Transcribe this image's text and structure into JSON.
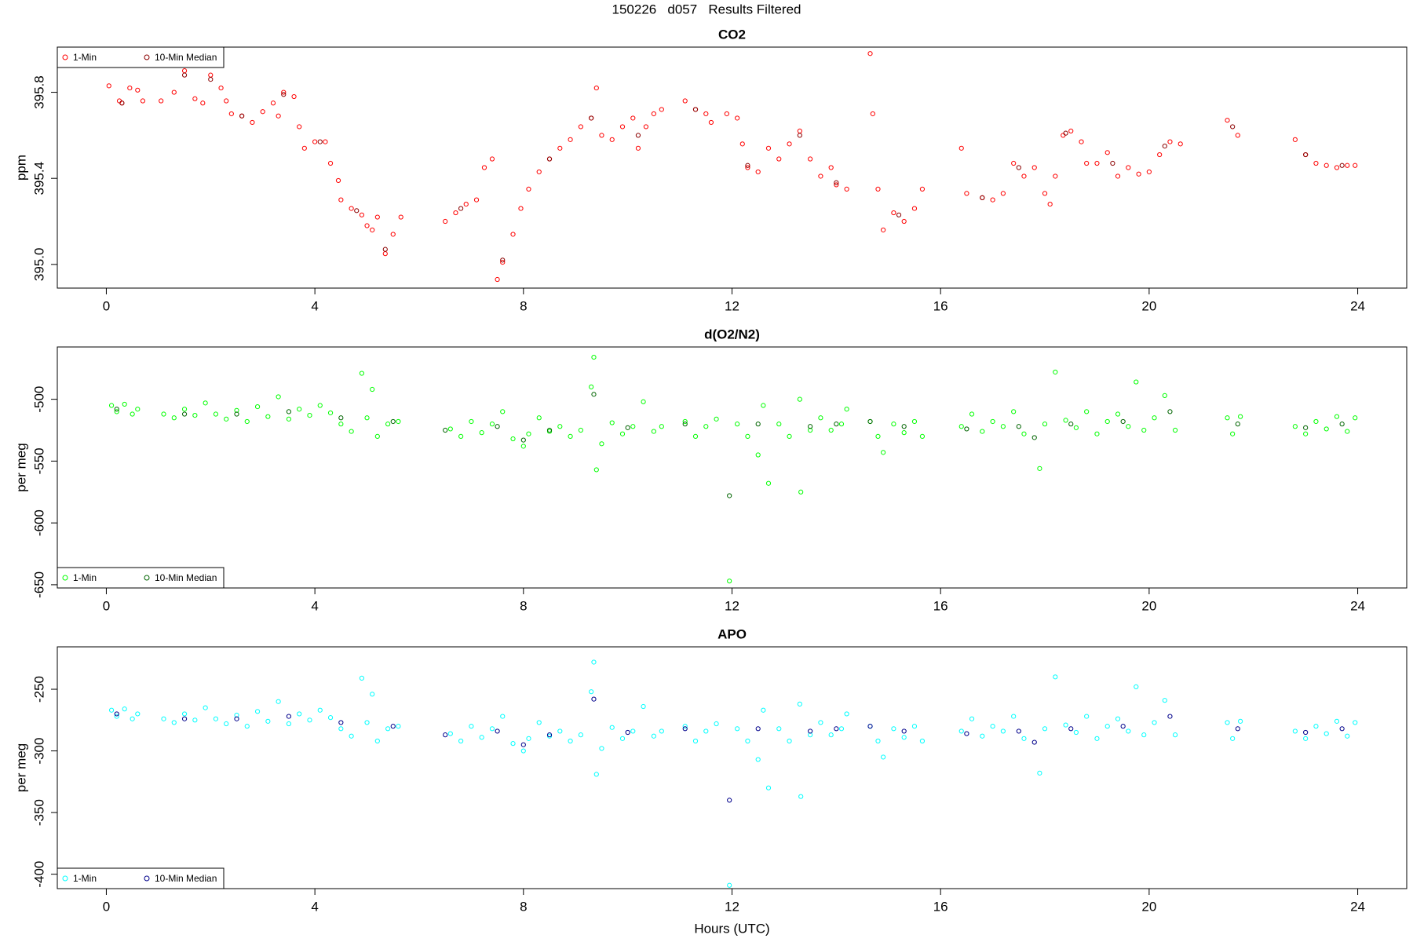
{
  "title": "150226   d057   Results Filtered",
  "chart_data": [
    {
      "type": "scatter",
      "title": "CO2",
      "ylabel": "ppm",
      "legend": "upper left",
      "xlim": [
        -0.94,
        24.94
      ],
      "xticks": [
        0,
        4,
        8,
        12,
        16,
        20,
        24
      ],
      "ylim": [
        394.89,
        396.01
      ],
      "yticks": [
        {
          "value": 395,
          "label": "395.0"
        },
        395.4,
        395.8
      ],
      "series": [
        {
          "name": "1-Min",
          "color": "#ff0000",
          "x": [
            0.05,
            0.25,
            0.3,
            0.45,
            0.6,
            0.7,
            1.05,
            1.3,
            1.5,
            1.7,
            1.85,
            2.0,
            2.2,
            2.3,
            2.4,
            2.6,
            2.8,
            3.0,
            3.2,
            3.3,
            3.4,
            3.6,
            3.7,
            3.8,
            4.0,
            4.2,
            4.3,
            4.45,
            4.5,
            4.7,
            4.9,
            5.0,
            5.1,
            5.2,
            5.35,
            5.5,
            5.65,
            6.5,
            6.7,
            6.9,
            7.1,
            7.25,
            7.4,
            7.5,
            7.6,
            7.8,
            7.95,
            8.1,
            8.3,
            8.5,
            8.7,
            8.9,
            9.1,
            9.3,
            9.4,
            9.5,
            9.7,
            9.9,
            10.1,
            10.2,
            10.35,
            10.5,
            10.65,
            11.1,
            11.3,
            11.5,
            11.6,
            11.9,
            12.1,
            12.2,
            12.3,
            12.5,
            12.7,
            12.9,
            13.1,
            13.3,
            13.5,
            13.7,
            13.9,
            14.0,
            14.2,
            14.65,
            14.7,
            14.8,
            14.9,
            15.1,
            15.3,
            15.5,
            15.65,
            16.4,
            16.5,
            16.8,
            17.0,
            17.2,
            17.4,
            17.6,
            17.8,
            18.0,
            18.1,
            18.2,
            18.35,
            18.5,
            18.7,
            18.8,
            19.0,
            19.2,
            19.4,
            19.6,
            19.8,
            20.0,
            20.2,
            20.4,
            20.6,
            21.5,
            21.7,
            22.8,
            23.0,
            23.2,
            23.4,
            23.6,
            23.8,
            23.95
          ],
          "values": [
            395.83,
            395.76,
            395.75,
            395.82,
            395.81,
            395.76,
            395.76,
            395.8,
            395.9,
            395.77,
            395.75,
            395.88,
            395.82,
            395.76,
            395.7,
            395.69,
            395.66,
            395.71,
            395.75,
            395.69,
            395.8,
            395.78,
            395.64,
            395.54,
            395.57,
            395.57,
            395.47,
            395.39,
            395.3,
            395.26,
            395.23,
            395.18,
            395.16,
            395.22,
            395.05,
            395.14,
            395.22,
            395.2,
            395.24,
            395.28,
            395.3,
            395.45,
            395.49,
            394.93,
            395.01,
            395.14,
            395.26,
            395.35,
            395.43,
            395.49,
            395.54,
            395.58,
            395.64,
            395.68,
            395.82,
            395.6,
            395.58,
            395.64,
            395.68,
            395.54,
            395.64,
            395.7,
            395.72,
            395.76,
            395.72,
            395.7,
            395.66,
            395.7,
            395.68,
            395.56,
            395.45,
            395.43,
            395.54,
            395.49,
            395.56,
            395.62,
            395.49,
            395.41,
            395.45,
            395.37,
            395.35,
            395.98,
            395.7,
            395.35,
            395.16,
            395.24,
            395.2,
            395.26,
            395.35,
            395.54,
            395.33,
            395.31,
            395.3,
            395.33,
            395.47,
            395.41,
            395.45,
            395.33,
            395.28,
            395.41,
            395.6,
            395.62,
            395.57,
            395.47,
            395.47,
            395.52,
            395.41,
            395.45,
            395.42,
            395.43,
            395.51,
            395.57,
            395.56,
            395.67,
            395.6,
            395.58,
            395.51,
            395.47,
            395.46,
            395.45,
            395.46,
            395.46
          ]
        },
        {
          "name": "10-Min Median",
          "color": "#8b0000",
          "x": [
            0.3,
            1.5,
            2.0,
            2.6,
            3.4,
            4.1,
            4.8,
            5.35,
            6.8,
            7.6,
            8.5,
            9.3,
            10.2,
            11.3,
            12.3,
            13.3,
            14.0,
            15.2,
            16.8,
            17.5,
            18.4,
            19.3,
            20.3,
            21.6,
            23.0,
            23.7
          ],
          "values": [
            395.75,
            395.88,
            395.86,
            395.69,
            395.79,
            395.57,
            395.25,
            395.07,
            395.26,
            395.02,
            395.49,
            395.68,
            395.6,
            395.72,
            395.46,
            395.6,
            395.38,
            395.23,
            395.31,
            395.45,
            395.61,
            395.47,
            395.55,
            395.64,
            395.51,
            395.46
          ]
        }
      ]
    },
    {
      "type": "scatter",
      "title": "d(O2/N2)",
      "ylabel": "per meg",
      "legend": "lower left",
      "xlim": [
        -0.94,
        24.94
      ],
      "xticks": [
        0,
        4,
        8,
        12,
        16,
        20,
        24
      ],
      "ylim": [
        -652.6,
        -457.7
      ],
      "yticks": [
        -500,
        -550,
        -600,
        -650
      ],
      "series": [
        {
          "name": "1-Min",
          "color": "#00ff00",
          "x": [
            0.1,
            0.2,
            0.35,
            0.5,
            0.6,
            1.1,
            1.3,
            1.5,
            1.7,
            1.9,
            2.1,
            2.3,
            2.5,
            2.7,
            2.9,
            3.1,
            3.3,
            3.5,
            3.7,
            3.9,
            4.1,
            4.3,
            4.5,
            4.7,
            4.9,
            5.0,
            5.1,
            5.2,
            5.4,
            5.6,
            6.6,
            6.8,
            7.0,
            7.2,
            7.4,
            7.6,
            7.8,
            8.0,
            8.1,
            8.3,
            8.5,
            8.7,
            8.9,
            9.1,
            9.3,
            9.35,
            9.4,
            9.5,
            9.7,
            9.9,
            10.1,
            10.3,
            10.5,
            10.65,
            11.1,
            11.3,
            11.5,
            11.7,
            11.95,
            12.1,
            12.3,
            12.5,
            12.6,
            12.7,
            12.9,
            13.1,
            13.3,
            13.32,
            13.5,
            13.7,
            13.9,
            14.1,
            14.2,
            14.65,
            14.8,
            14.9,
            15.1,
            15.3,
            15.5,
            15.65,
            16.4,
            16.6,
            16.8,
            17.0,
            17.2,
            17.4,
            17.6,
            17.9,
            18.0,
            18.2,
            18.4,
            18.6,
            18.8,
            19.0,
            19.2,
            19.4,
            19.6,
            19.75,
            19.9,
            20.1,
            20.3,
            20.5,
            21.5,
            21.6,
            21.75,
            22.8,
            23.0,
            23.2,
            23.4,
            23.6,
            23.8,
            23.95
          ],
          "values": [
            -505,
            -510,
            -504,
            -512,
            -508,
            -512,
            -515,
            -508,
            -513,
            -503,
            -512,
            -516,
            -509,
            -518,
            -506,
            -514,
            -498,
            -516,
            -508,
            -513,
            -505,
            -511,
            -520,
            -526,
            -479,
            -515,
            -492,
            -530,
            -520,
            -518,
            -524,
            -530,
            -518,
            -527,
            -520,
            -510,
            -532,
            -538,
            -528,
            -515,
            -526,
            -522,
            -530,
            -525,
            -490,
            -466,
            -557,
            -536,
            -519,
            -528,
            -522,
            -502,
            -526,
            -522,
            -518,
            -530,
            -522,
            -516,
            -647,
            -520,
            -530,
            -545,
            -505,
            -568,
            -520,
            -530,
            -500,
            -575,
            -525,
            -515,
            -525,
            -520,
            -508,
            -518,
            -530,
            -543,
            -520,
            -527,
            -518,
            -530,
            -522,
            -512,
            -526,
            -518,
            -522,
            -510,
            -528,
            -556,
            -520,
            -478,
            -517,
            -523,
            -510,
            -528,
            -518,
            -512,
            -522,
            -486,
            -525,
            -515,
            -497,
            -525,
            -515,
            -528,
            -514,
            -522,
            -528,
            -518,
            -524,
            -514,
            -526,
            -515
          ]
        },
        {
          "name": "10-Min Median",
          "color": "#006400",
          "x": [
            0.2,
            1.5,
            2.5,
            3.5,
            4.5,
            5.5,
            6.5,
            7.5,
            8.0,
            8.5,
            9.35,
            10.0,
            11.1,
            11.95,
            12.5,
            13.5,
            14.0,
            14.65,
            15.3,
            16.5,
            17.5,
            17.8,
            18.5,
            19.5,
            20.4,
            21.7,
            23.0,
            23.7
          ],
          "values": [
            -508,
            -512,
            -512,
            -510,
            -515,
            -518,
            -525,
            -522,
            -533,
            -525,
            -496,
            -523,
            -520,
            -578,
            -520,
            -522,
            -520,
            -518,
            -522,
            -524,
            -522,
            -531,
            -520,
            -518,
            -510,
            -520,
            -523,
            -520
          ]
        }
      ]
    },
    {
      "type": "scatter",
      "title": "APO",
      "ylabel": "per meg",
      "xlabel": "Hours (UTC)",
      "legend": "lower left",
      "xlim": [
        -0.94,
        24.94
      ],
      "xticks": [
        0,
        4,
        8,
        12,
        16,
        20,
        24
      ],
      "ylim": [
        -411.7,
        -215.6
      ],
      "yticks": [
        -250,
        -300,
        -350,
        -400
      ],
      "series": [
        {
          "name": "1-Min",
          "color": "#00ffff",
          "x": [
            0.1,
            0.2,
            0.35,
            0.5,
            0.6,
            1.1,
            1.3,
            1.5,
            1.7,
            1.9,
            2.1,
            2.3,
            2.5,
            2.7,
            2.9,
            3.1,
            3.3,
            3.5,
            3.7,
            3.9,
            4.1,
            4.3,
            4.5,
            4.7,
            4.9,
            5.0,
            5.1,
            5.2,
            5.4,
            5.6,
            6.6,
            6.8,
            7.0,
            7.2,
            7.4,
            7.6,
            7.8,
            8.0,
            8.1,
            8.3,
            8.5,
            8.7,
            8.9,
            9.1,
            9.3,
            9.35,
            9.4,
            9.5,
            9.7,
            9.9,
            10.1,
            10.3,
            10.5,
            10.65,
            11.1,
            11.3,
            11.5,
            11.7,
            11.95,
            12.1,
            12.3,
            12.5,
            12.6,
            12.7,
            12.9,
            13.1,
            13.3,
            13.32,
            13.5,
            13.7,
            13.9,
            14.1,
            14.2,
            14.65,
            14.8,
            14.9,
            15.1,
            15.3,
            15.5,
            15.65,
            16.4,
            16.6,
            16.8,
            17.0,
            17.2,
            17.4,
            17.6,
            17.9,
            18.0,
            18.2,
            18.4,
            18.6,
            18.8,
            19.0,
            19.2,
            19.4,
            19.6,
            19.75,
            19.9,
            20.1,
            20.3,
            20.5,
            21.5,
            21.6,
            21.75,
            22.8,
            23.0,
            23.2,
            23.4,
            23.6,
            23.8,
            23.95
          ],
          "values": [
            -267,
            -272,
            -266,
            -274,
            -270,
            -274,
            -277,
            -270,
            -275,
            -265,
            -274,
            -278,
            -271,
            -280,
            -268,
            -276,
            -260,
            -278,
            -270,
            -275,
            -267,
            -273,
            -282,
            -288,
            -241,
            -277,
            -254,
            -292,
            -282,
            -280,
            -286,
            -292,
            -280,
            -289,
            -282,
            -272,
            -294,
            -300,
            -290,
            -277,
            -288,
            -284,
            -292,
            -287,
            -252,
            -228,
            -319,
            -298,
            -281,
            -290,
            -284,
            -264,
            -288,
            -284,
            -280,
            -292,
            -284,
            -278,
            -409,
            -282,
            -292,
            -307,
            -267,
            -330,
            -282,
            -292,
            -262,
            -337,
            -287,
            -277,
            -287,
            -282,
            -270,
            -280,
            -292,
            -305,
            -282,
            -289,
            -280,
            -292,
            -284,
            -274,
            -288,
            -280,
            -284,
            -272,
            -290,
            -318,
            -282,
            -240,
            -279,
            -285,
            -272,
            -290,
            -280,
            -274,
            -284,
            -248,
            -287,
            -277,
            -259,
            -287,
            -277,
            -290,
            -276,
            -284,
            -290,
            -280,
            -286,
            -276,
            -288,
            -277
          ]
        },
        {
          "name": "10-Min Median",
          "color": "#00008b",
          "x": [
            0.2,
            1.5,
            2.5,
            3.5,
            4.5,
            5.5,
            6.5,
            7.5,
            8.0,
            8.5,
            9.35,
            10.0,
            11.1,
            11.95,
            12.5,
            13.5,
            14.0,
            14.65,
            15.3,
            16.5,
            17.5,
            17.8,
            18.5,
            19.5,
            20.4,
            21.7,
            23.0,
            23.7
          ],
          "values": [
            -270,
            -274,
            -274,
            -272,
            -277,
            -280,
            -287,
            -284,
            -295,
            -287,
            -258,
            -285,
            -282,
            -340,
            -282,
            -284,
            -282,
            -280,
            -284,
            -286,
            -284,
            -293,
            -282,
            -280,
            -272,
            -282,
            -285,
            -282
          ]
        }
      ]
    }
  ]
}
